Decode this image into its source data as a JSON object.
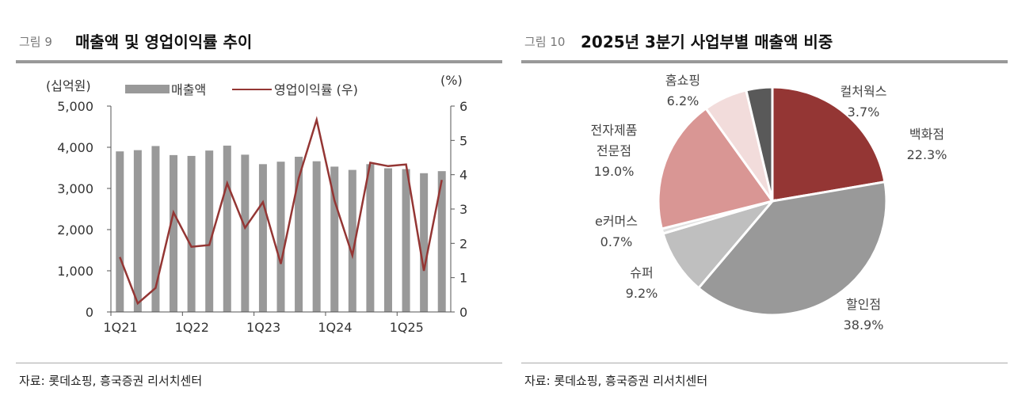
{
  "left": {
    "fig_no": "그림 9",
    "title": "매출액 및 영업이익률 추이",
    "source": "자료: 롯데쇼핑, 흥국증권 리서치센터"
  },
  "right": {
    "fig_no": "그림 10",
    "title": "2025년 3분기 사업부별 매출액 비중",
    "source": "자료: 롯데쇼핑, 흥국증권 리서치센터"
  },
  "chart_data": [
    {
      "type": "bar",
      "title": "매출액 및 영업이익률 추이",
      "left_unit": "(십억원)",
      "right_unit": "(%)",
      "categories": [
        "1Q21",
        "2Q21",
        "3Q21",
        "4Q21",
        "1Q22",
        "2Q22",
        "3Q22",
        "4Q22",
        "1Q23",
        "2Q23",
        "3Q23",
        "4Q23",
        "1Q24",
        "2Q24",
        "3Q24",
        "4Q24",
        "1Q25",
        "2Q25",
        "3Q25"
      ],
      "x_tick_labels": [
        "1Q21",
        "1Q22",
        "1Q23",
        "1Q24",
        "1Q25"
      ],
      "left_ticks": [
        "0",
        "1,000",
        "2,000",
        "3,000",
        "4,000",
        "5,000"
      ],
      "right_ticks": [
        "0",
        "1",
        "2",
        "3",
        "4",
        "5",
        "6"
      ],
      "ylim": [
        0,
        5000
      ],
      "y2lim": [
        0,
        6
      ],
      "series": [
        {
          "name": "매출액",
          "type": "bar",
          "color": "#999999",
          "values": [
            3900,
            3930,
            4030,
            3810,
            3790,
            3920,
            4040,
            3820,
            3590,
            3650,
            3770,
            3660,
            3530,
            3450,
            3590,
            3490,
            3470,
            3370,
            3420
          ]
        },
        {
          "name": "영업이익률 (우)",
          "type": "line",
          "axis": "right",
          "color": "#943634",
          "values": [
            1.6,
            0.25,
            0.7,
            2.9,
            1.9,
            1.95,
            3.75,
            2.45,
            3.2,
            1.4,
            3.9,
            5.6,
            3.25,
            1.65,
            4.35,
            4.25,
            4.3,
            1.2,
            3.85
          ]
        }
      ],
      "legend": "top"
    },
    {
      "type": "pie",
      "title": "2025년 3분기 사업부별 매출액 비중",
      "slices": [
        {
          "label": "백화점",
          "value": 22.3,
          "text": "22.3%",
          "color": "#943634"
        },
        {
          "label": "할인점",
          "value": 38.9,
          "text": "38.9%",
          "color": "#999999"
        },
        {
          "label": "슈퍼",
          "value": 9.2,
          "text": "9.2%",
          "color": "#bfbfbf"
        },
        {
          "label": "e커머스",
          "value": 0.7,
          "text": "0.7%",
          "color": "#e0e0e0"
        },
        {
          "label": "전자제품 전문점",
          "label_lines": [
            "전자제품",
            "전문점"
          ],
          "value": 19.0,
          "text": "19.0%",
          "color": "#d99694"
        },
        {
          "label": "홈쇼핑",
          "value": 6.2,
          "text": "6.2%",
          "color": "#f2dcdb"
        },
        {
          "label": "컬처웍스",
          "value": 3.7,
          "text": "3.7%",
          "color": "#595959"
        }
      ]
    }
  ]
}
